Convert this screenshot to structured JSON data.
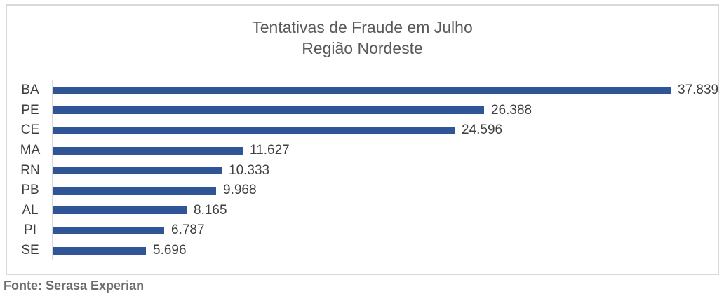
{
  "title": {
    "line1": "Tentativas de Fraude em Julho",
    "line2": "Região Nordeste"
  },
  "footer": {
    "source": "Fonte: Serasa Experian"
  },
  "colors": {
    "bar": "#2F5597",
    "title_text": "#595959",
    "axis_labels": "#3f3f3f",
    "frame_border": "#D9D9D9",
    "source_text": "#6d6d6d"
  },
  "chart_data": {
    "type": "bar",
    "orientation": "horizontal",
    "title": "Tentativas de Fraude em Julho",
    "subtitle": "Região Nordeste",
    "categories": [
      "BA",
      "PE",
      "CE",
      "MA",
      "RN",
      "PB",
      "AL",
      "PI",
      "SE"
    ],
    "values": [
      37839,
      26388,
      24596,
      11627,
      10333,
      9968,
      8165,
      6787,
      5696
    ],
    "value_labels": [
      "37.839",
      "26.388",
      "24.596",
      "11.627",
      "10.333",
      "9.968",
      "8.165",
      "6.787",
      "5.696"
    ],
    "series": [
      {
        "name": "Tentativas de Fraude",
        "values": [
          37839,
          26388,
          24596,
          11627,
          10333,
          9968,
          8165,
          6787,
          5696
        ]
      }
    ],
    "xlabel": "",
    "ylabel": "",
    "xlim": [
      0,
      40000
    ],
    "grid": false,
    "legend": false,
    "data_labels": true,
    "sort_order": "descending"
  }
}
